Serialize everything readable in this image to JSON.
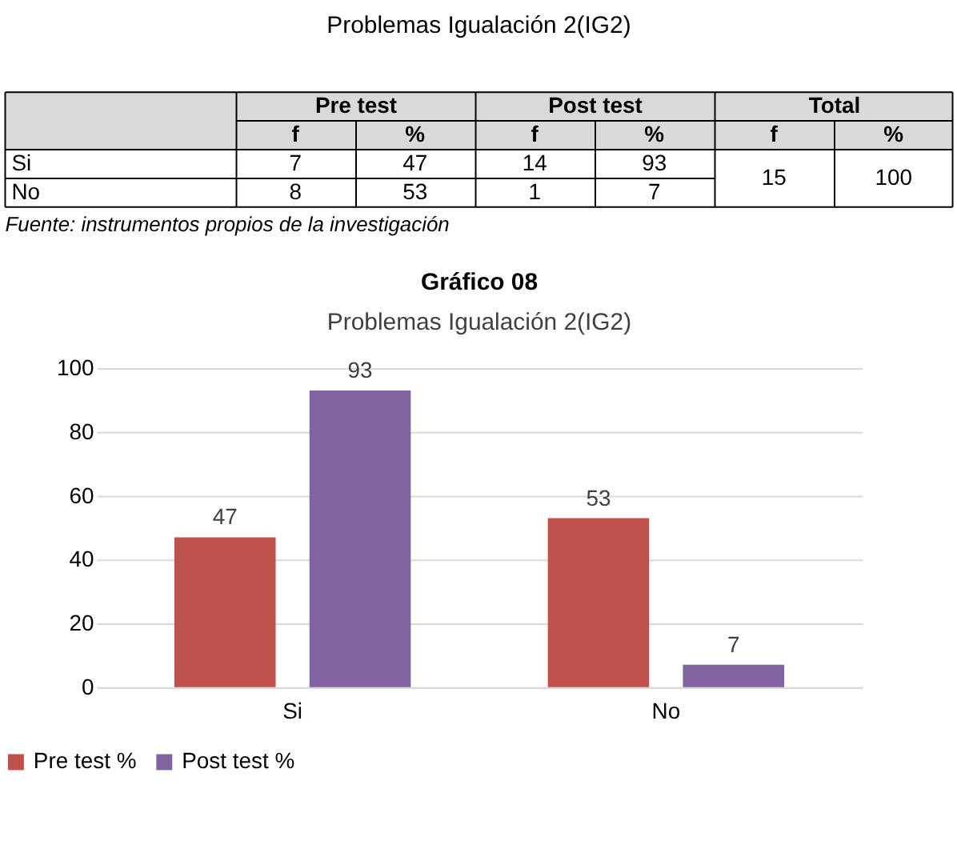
{
  "chart_data": [
    {
      "type": "other",
      "title": "Problemas Igualación 2(IG2)",
      "annotations": [
        "Pre test",
        "Post test",
        "Total",
        "f",
        "%",
        "f",
        "%",
        "f",
        "%",
        "Si",
        "7",
        "47",
        "14",
        "93",
        "15",
        "100",
        "No",
        "8",
        "53",
        "1",
        "7",
        "Fuente: instrumentos propios de la investigación"
      ]
    },
    {
      "type": "bar",
      "title": "Gráfico 08",
      "subtitle": "Problemas Igualación 2(IG2)",
      "categories": [
        "Si",
        "No"
      ],
      "series": [
        {
          "name": "Pre test %",
          "color": "#c0504d",
          "values": [
            47,
            53
          ]
        },
        {
          "name": "Post test %",
          "color": "#8064a2",
          "values": [
            93,
            7
          ]
        }
      ],
      "ylim": [
        0,
        100
      ],
      "yticks": [
        0,
        20,
        40,
        60,
        80,
        100
      ],
      "grid": "y",
      "legend": "bottom",
      "data_labels": true
    }
  ]
}
